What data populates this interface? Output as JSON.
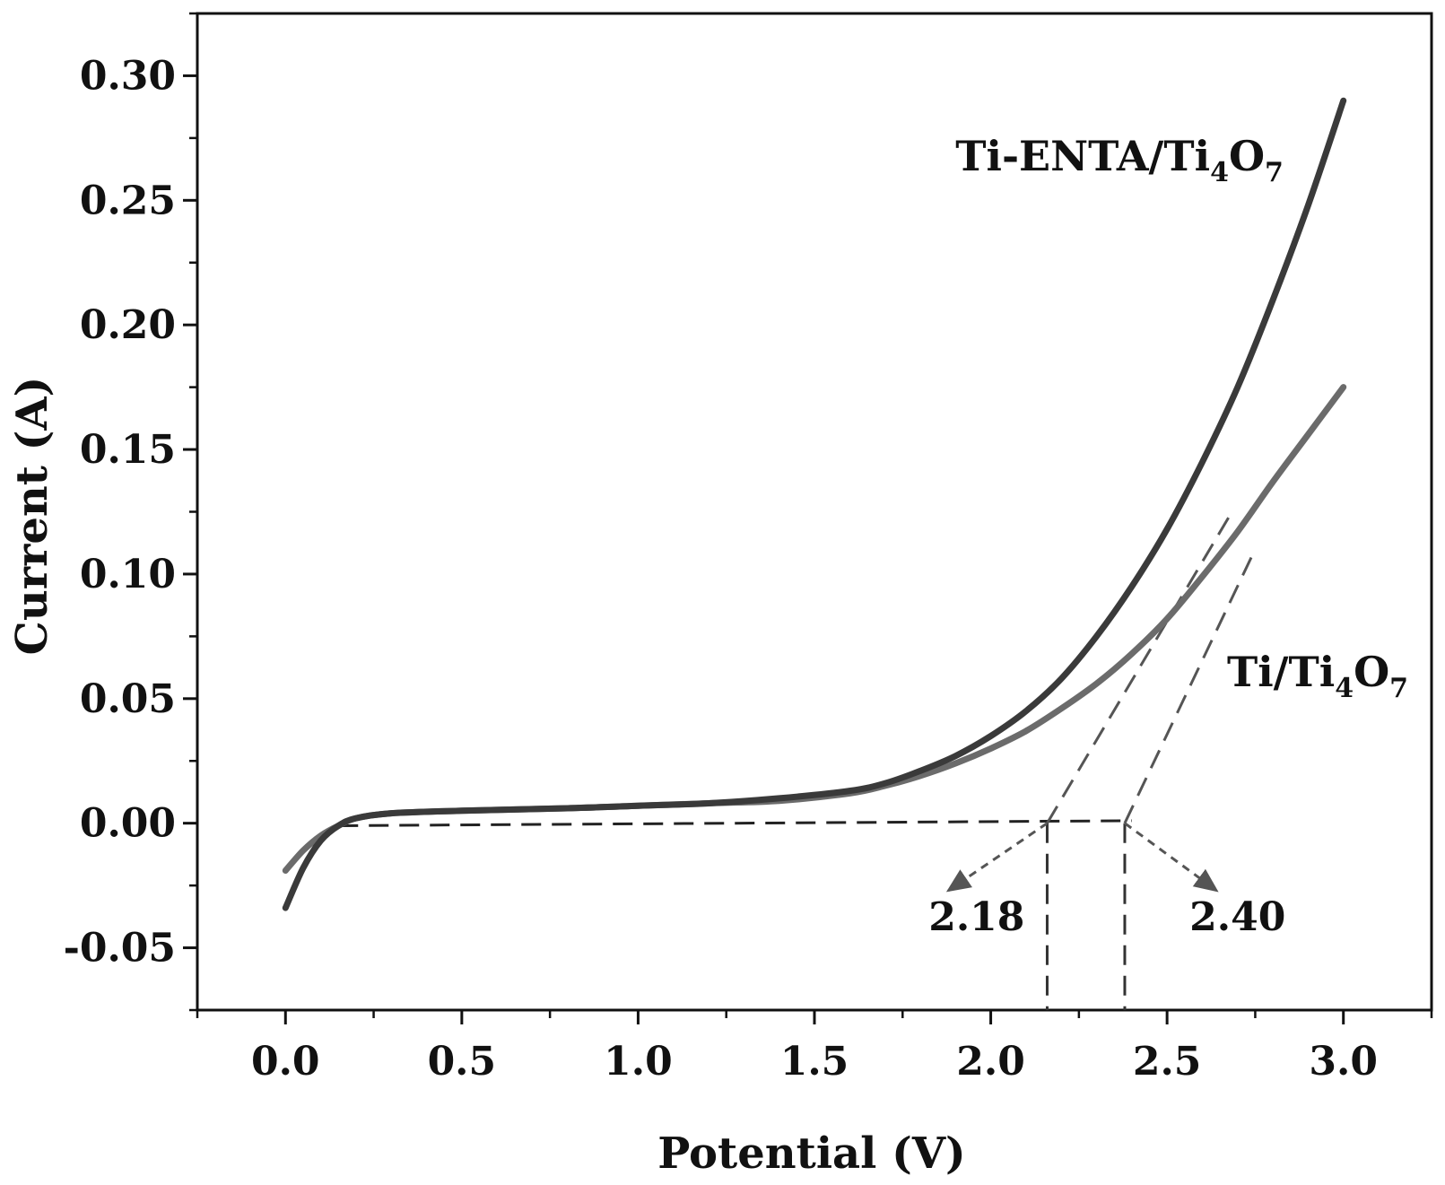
{
  "chart_data": {
    "type": "line",
    "title": "",
    "xlabel": "Potential (V)",
    "ylabel": "Current (A)",
    "xlim": [
      -0.25,
      3.25
    ],
    "ylim": [
      -0.075,
      0.325
    ],
    "xticks": [
      0.0,
      0.5,
      1.0,
      1.5,
      2.0,
      2.5,
      3.0
    ],
    "xtick_labels": [
      "0.0",
      "0.5",
      "1.0",
      "1.5",
      "2.0",
      "2.5",
      "3.0"
    ],
    "yticks": [
      -0.05,
      0.0,
      0.05,
      0.1,
      0.15,
      0.2,
      0.25,
      0.3
    ],
    "ytick_labels": [
      "-0.05",
      "0.00",
      "0.05",
      "0.10",
      "0.15",
      "0.20",
      "0.25",
      "0.30"
    ],
    "series": [
      {
        "name": "Ti-ENTA/Ti4O7",
        "label_main": "Ti-ENTA/Ti",
        "label_sub1": "4",
        "label_mid": "O",
        "label_sub2": "7",
        "color": "#3a3a3a",
        "x": [
          0.0,
          0.05,
          0.1,
          0.15,
          0.2,
          0.3,
          0.5,
          0.8,
          1.0,
          1.2,
          1.4,
          1.6,
          1.7,
          1.8,
          1.9,
          2.0,
          2.1,
          2.2,
          2.3,
          2.4,
          2.5,
          2.6,
          2.7,
          2.8,
          2.9,
          3.0
        ],
        "y": [
          -0.034,
          -0.018,
          -0.007,
          -0.001,
          0.002,
          0.004,
          0.005,
          0.006,
          0.007,
          0.008,
          0.01,
          0.013,
          0.016,
          0.021,
          0.027,
          0.035,
          0.045,
          0.058,
          0.075,
          0.095,
          0.118,
          0.145,
          0.175,
          0.21,
          0.248,
          0.29
        ]
      },
      {
        "name": "Ti/Ti4O7",
        "label_main": "Ti/Ti",
        "label_sub1": "4",
        "label_mid": "O",
        "label_sub2": "7",
        "color": "#6b6b6b",
        "x": [
          0.0,
          0.05,
          0.1,
          0.15,
          0.2,
          0.3,
          0.5,
          0.8,
          1.0,
          1.2,
          1.4,
          1.6,
          1.7,
          1.8,
          1.9,
          2.0,
          2.1,
          2.2,
          2.3,
          2.4,
          2.5,
          2.6,
          2.7,
          2.8,
          2.9,
          3.0
        ],
        "y": [
          -0.019,
          -0.011,
          -0.005,
          -0.001,
          0.002,
          0.004,
          0.005,
          0.006,
          0.007,
          0.008,
          0.009,
          0.012,
          0.015,
          0.019,
          0.024,
          0.03,
          0.037,
          0.046,
          0.056,
          0.068,
          0.082,
          0.099,
          0.117,
          0.137,
          0.156,
          0.175
        ]
      }
    ],
    "baseline": {
      "x": [
        0.15,
        2.4
      ],
      "y": [
        -0.001,
        0.001
      ]
    },
    "tangents": [
      {
        "x": [
          2.16,
          2.68
        ],
        "y": [
          0.0,
          0.124
        ]
      },
      {
        "x": [
          2.38,
          2.75
        ],
        "y": [
          0.0,
          0.11
        ]
      }
    ],
    "onset_markers": [
      {
        "x": 2.16,
        "value_label": "2.18",
        "arrow_to": [
          1.88,
          -0.027
        ],
        "label_at": [
          1.96,
          -0.043
        ]
      },
      {
        "x": 2.38,
        "value_label": "2.40",
        "arrow_to": [
          2.64,
          -0.027
        ],
        "label_at": [
          2.7,
          -0.043
        ]
      }
    ],
    "series_label_positions": [
      {
        "at": [
          1.9,
          0.262
        ]
      },
      {
        "at": [
          2.67,
          0.055
        ]
      }
    ],
    "grid": false,
    "legend": "none"
  }
}
